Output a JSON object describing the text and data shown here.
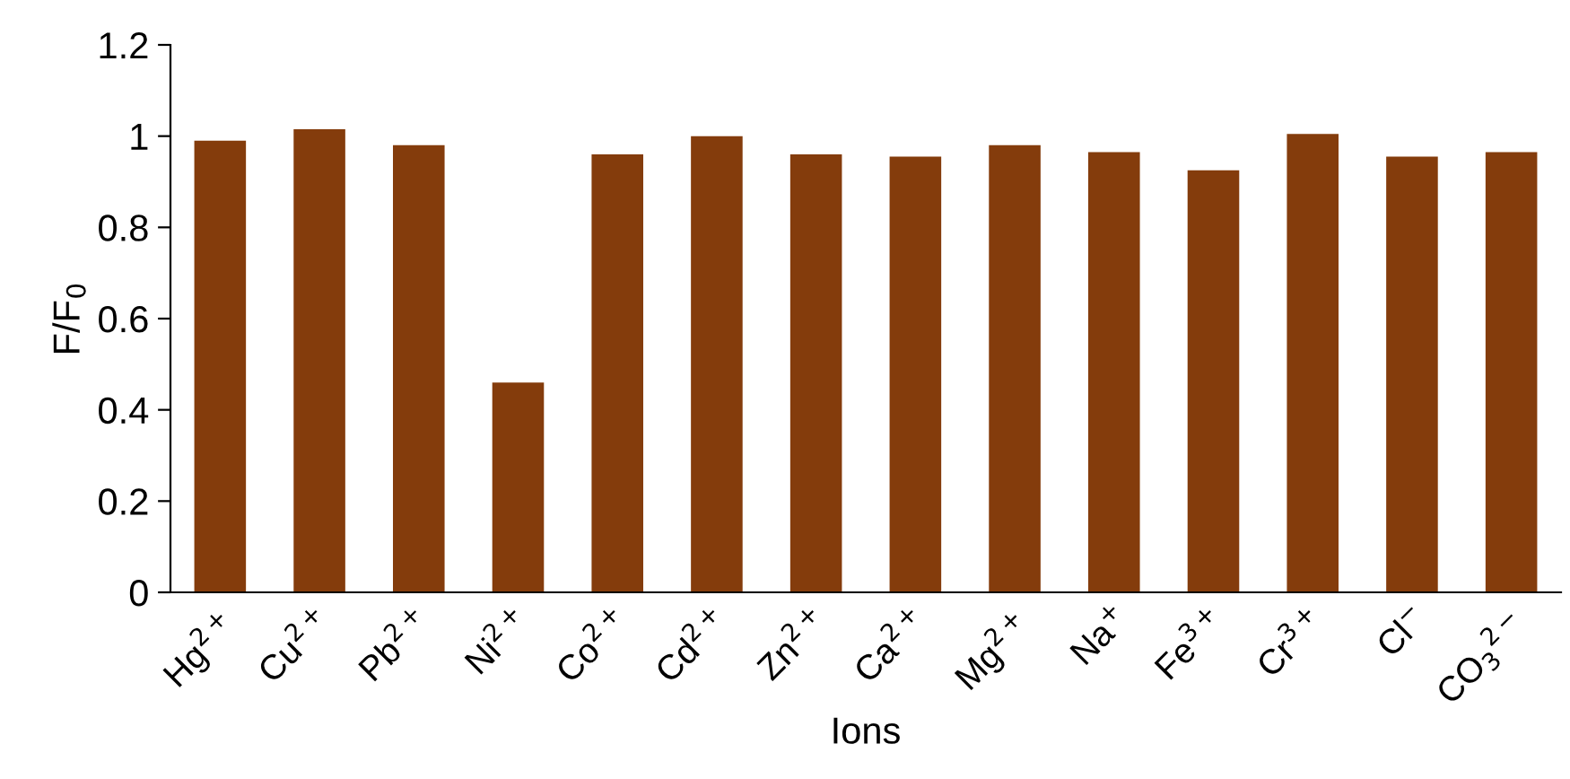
{
  "chart_data": {
    "type": "bar",
    "xlabel": "Ions",
    "ylabel": "F/F$_{0}$",
    "categories": [
      "Hg$^{2+}$",
      "Cu$^{2+}$",
      "Pb$^{2+}$",
      "Ni$^{2+}$",
      "Co$^{2+}$",
      "Cd$^{2+}$",
      "Zn$^{2+}$",
      "Ca$^{2+}$",
      "Mg$^{2+}$",
      "Na$^{+}$",
      "Fe$^{3+}$",
      "Cr$^{3+}$",
      "Cl$^{−}$",
      "CO$_{3}$$^{2−}$"
    ],
    "values": [
      0.99,
      1.015,
      0.98,
      0.46,
      0.96,
      1.0,
      0.96,
      0.955,
      0.98,
      0.965,
      0.925,
      1.005,
      0.955,
      0.965
    ],
    "color": "#843c0c",
    "ylim": [
      0,
      1.2
    ],
    "yticks": [
      0,
      0.2,
      0.4,
      0.6,
      0.8,
      1,
      1.2
    ],
    "grid": false
  }
}
